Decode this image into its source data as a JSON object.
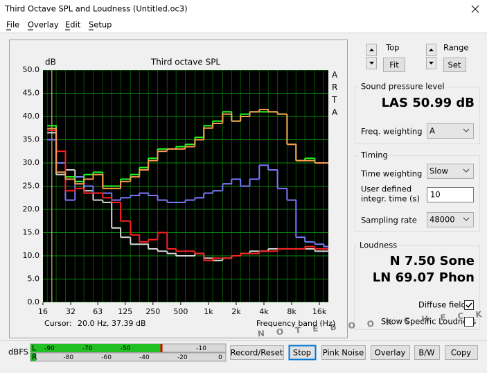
{
  "window": {
    "title": "Third Octave SPL and Loudness (Untitled.oc3)"
  },
  "menu": [
    "File",
    "Overlay",
    "Edit",
    "Setup"
  ],
  "chart_data": {
    "type": "line",
    "step": "mid",
    "title": "Third octave SPL",
    "y_label": "dB",
    "side_label": "ARTA",
    "x_label": "Frequency band (Hz)",
    "cursor_label": "Cursor:",
    "cursor_text": "20.0 Hz, 37.39 dB",
    "log_x": true,
    "grid": true,
    "xlim": [
      16,
      20000
    ],
    "ylim": [
      0,
      50
    ],
    "xticks": [
      16,
      32,
      63,
      125,
      250,
      500,
      {
        "value": 1000,
        "label": "1k"
      },
      {
        "value": 2000,
        "label": "2k"
      },
      {
        "value": 4000,
        "label": "4k"
      },
      {
        "value": 8000,
        "label": "8k"
      },
      {
        "value": 16000,
        "label": "16k"
      }
    ],
    "yticks": [
      {
        "value": 0,
        "label": "0.0"
      },
      {
        "value": 5,
        "label": "5.0"
      },
      {
        "value": 10,
        "label": "10.0"
      },
      {
        "value": 15,
        "label": "15.0"
      },
      {
        "value": 20,
        "label": "20.0"
      },
      {
        "value": 25,
        "label": "25.0"
      },
      {
        "value": 30,
        "label": "30.0"
      },
      {
        "value": 35,
        "label": "35.0"
      },
      {
        "value": 40,
        "label": "40.0"
      },
      {
        "value": 45,
        "label": "45.0"
      },
      {
        "value": 50,
        "label": "50.0"
      }
    ],
    "cursor_x": 20,
    "x": [
      20,
      25,
      31.5,
      40,
      50,
      63,
      80,
      100,
      125,
      160,
      200,
      250,
      315,
      400,
      500,
      630,
      800,
      1000,
      1250,
      1600,
      2000,
      2500,
      3150,
      4000,
      5000,
      6300,
      8000,
      10000,
      12500,
      16000,
      20000
    ],
    "series": [
      {
        "color": "#d8d8d8",
        "values": [
          36.5,
          27.5,
          28.5,
          27.0,
          24.0,
          22.0,
          21.5,
          16.0,
          14.0,
          12.5,
          12.5,
          11.5,
          11.0,
          10.5,
          10.0,
          10.0,
          10.5,
          9.5,
          9.0,
          9.5,
          10.0,
          10.5,
          11.0,
          11.0,
          11.5,
          11.5,
          11.5,
          11.5,
          11.5,
          11.0,
          11.0
        ]
      },
      {
        "color": "#7b7bff",
        "values": [
          35.0,
          30.0,
          22.0,
          27.0,
          25.0,
          23.5,
          23.5,
          22.0,
          22.5,
          23.0,
          23.5,
          23.0,
          22.0,
          21.5,
          21.5,
          22.0,
          22.5,
          23.5,
          24.0,
          25.5,
          26.5,
          25.0,
          26.5,
          29.5,
          28.5,
          24.5,
          22.0,
          14.0,
          13.0,
          12.5,
          12.0
        ]
      },
      {
        "color": "#ff2020",
        "values": [
          37.0,
          32.5,
          24.0,
          24.5,
          23.5,
          23.5,
          22.5,
          21.5,
          17.5,
          14.5,
          13.0,
          13.5,
          15.0,
          11.5,
          11.0,
          11.0,
          10.5,
          9.0,
          9.5,
          9.5,
          10.0,
          10.5,
          10.5,
          11.0,
          11.0,
          11.5,
          11.5,
          11.5,
          12.0,
          11.5,
          11.5
        ]
      },
      {
        "color": "#20ff20",
        "values": [
          38.0,
          28.0,
          27.0,
          26.0,
          27.5,
          28.0,
          25.0,
          25.0,
          26.5,
          27.5,
          29.0,
          31.0,
          33.0,
          33.0,
          33.5,
          34.0,
          35.5,
          38.0,
          39.0,
          41.0,
          39.0,
          40.5,
          41.0,
          41.0,
          41.0,
          40.5,
          34.0,
          30.5,
          31.0,
          30.0,
          30.0
        ]
      },
      {
        "color": "#ff9a50",
        "values": [
          37.4,
          28.0,
          26.5,
          25.5,
          26.5,
          27.5,
          24.5,
          24.5,
          26.0,
          27.0,
          28.5,
          30.5,
          32.5,
          33.0,
          33.0,
          33.5,
          35.0,
          37.5,
          38.5,
          40.5,
          39.0,
          40.0,
          41.0,
          41.5,
          41.0,
          40.5,
          34.0,
          30.5,
          30.5,
          30.0,
          30.0
        ]
      }
    ]
  },
  "controls": {
    "top_label": "Top",
    "fit_button": "Fit",
    "range_label": "Range",
    "set_button": "Set"
  },
  "spl": {
    "group": "Sound pressure level",
    "reading": "LAS 50.99 dB",
    "freq_weighting_label": "Freq. weighting",
    "freq_weighting": "A"
  },
  "timing": {
    "group": "Timing",
    "time_weighting_label": "Time weighting",
    "time_weighting": "Slow",
    "integr_time_label": [
      "User defined",
      "integr. time (s)"
    ],
    "integr_time": "10",
    "sampling_rate_label": "Sampling rate",
    "sampling_rate": "48000"
  },
  "loudness": {
    "group": "Loudness",
    "sone": "N 7.50 Sone",
    "phon": "LN 69.07 Phon",
    "diffuse_field": "Diffuse field",
    "diffuse_field_checked": true,
    "show_specific": "Show Specific Loudness",
    "show_specific_checked": false
  },
  "meter": {
    "label": "dBFS",
    "lim": [
      -100,
      0
    ],
    "channels": [
      {
        "name": "L",
        "level": -31,
        "ticks": [
          -90,
          -70,
          -50,
          -10
        ]
      },
      {
        "name": "R",
        "level": -97,
        "ticks": [
          -80,
          -60,
          -40,
          -20,
          0
        ]
      }
    ]
  },
  "buttons": [
    "Record/Reset",
    "Stop",
    "Pink Noise",
    "Overlay",
    "B/W",
    "Copy"
  ],
  "watermark": "NOTEBOOKCHECK"
}
